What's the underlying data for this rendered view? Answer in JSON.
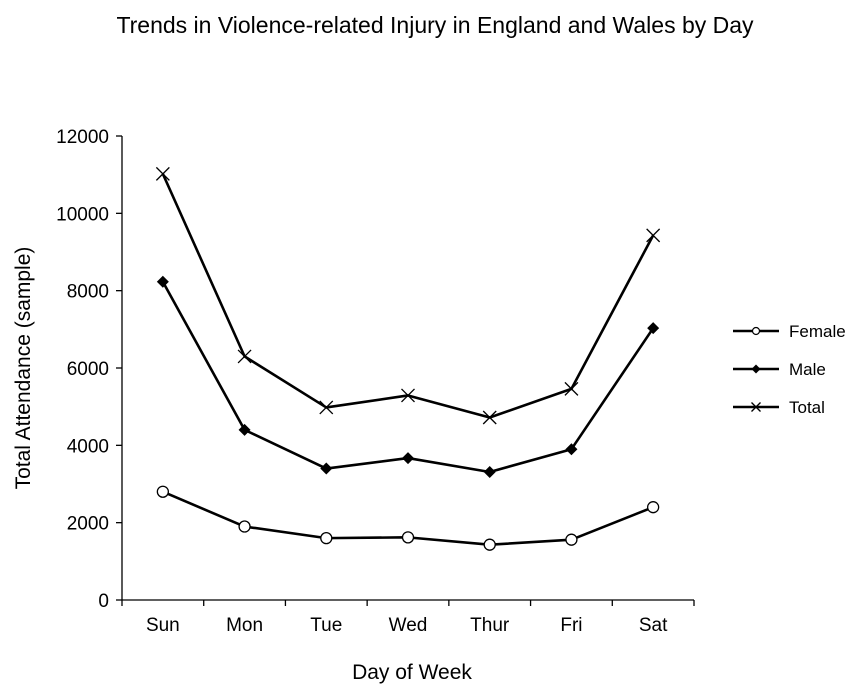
{
  "chart_data": {
    "type": "line",
    "title": "Trends in Violence-related Injury in England and Wales by Day",
    "xlabel": "Day of Week",
    "ylabel": "Total Attendance (sample)",
    "categories": [
      "Sun",
      "Mon",
      "Tue",
      "Wed",
      "Thur",
      "Fri",
      "Sat"
    ],
    "ylim": [
      0,
      12000
    ],
    "yticks": [
      "0",
      "2000",
      "4000",
      "6000",
      "8000",
      "10000",
      "12000"
    ],
    "grid": false,
    "legend_position": "right",
    "series": [
      {
        "name": "Female",
        "marker": "circle",
        "color": "#000000",
        "values": [
          2800,
          1900,
          1600,
          1620,
          1430,
          1560,
          2400
        ]
      },
      {
        "name": "Male",
        "marker": "diamond",
        "color": "#000000",
        "values": [
          8230,
          4400,
          3400,
          3670,
          3310,
          3900,
          7030
        ]
      },
      {
        "name": "Total",
        "marker": "cross",
        "color": "#000000",
        "values": [
          11020,
          6300,
          4980,
          5290,
          4720,
          5460,
          9430
        ]
      }
    ]
  }
}
